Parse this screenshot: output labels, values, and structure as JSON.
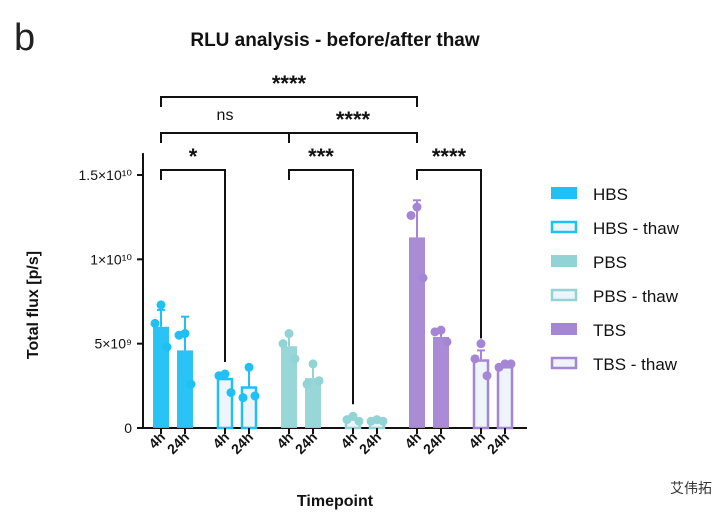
{
  "panel_label": "b",
  "watermark": "艾伟拓",
  "chart_data": {
    "type": "bar",
    "title": "RLU analysis - before/after thaw",
    "xlabel": "Timepoint",
    "ylabel": "Total flux [p/s]",
    "ylim": [
      0,
      16000000000.0
    ],
    "yticks": [
      {
        "value": 0,
        "label": "0"
      },
      {
        "value": 5000000000.0,
        "label": "5×10⁹"
      },
      {
        "value": 10000000000.0,
        "label": "1×10¹⁰"
      },
      {
        "value": 15000000000.0,
        "label": "1.5×10¹⁰"
      }
    ],
    "categories": [
      "4h",
      "24h"
    ],
    "legend_position": "right",
    "series": [
      {
        "name": "HBS",
        "color": "#1ec0f5",
        "thaw": false,
        "values": [
          6000000000.0,
          4600000000.0
        ],
        "errors_upper": [
          7000000000.0,
          6600000000.0
        ],
        "points": [
          [
            7300000000.0,
            6200000000.0,
            4800000000.0
          ],
          [
            5600000000.0,
            5500000000.0,
            2600000000.0
          ]
        ]
      },
      {
        "name": "HBS - thaw",
        "color": "#1ec0f5",
        "thaw": true,
        "values": [
          2900000000.0,
          2400000000.0
        ],
        "errors_upper": [
          3200000000.0,
          3600000000.0
        ],
        "points": [
          [
            3200000000.0,
            3100000000.0,
            2100000000.0
          ],
          [
            3600000000.0,
            1800000000.0,
            1900000000.0
          ]
        ]
      },
      {
        "name": "PBS",
        "color": "#92d4d6",
        "thaw": false,
        "values": [
          4850000000.0,
          2960000000.0
        ],
        "errors_upper": [
          5500000000.0,
          3800000000.0
        ],
        "points": [
          [
            5600000000.0,
            5000000000.0,
            4100000000.0
          ],
          [
            3800000000.0,
            2600000000.0,
            2800000000.0
          ]
        ]
      },
      {
        "name": "PBS - thaw",
        "color": "#92d4d6",
        "thaw": true,
        "values": [
          500000000.0,
          400000000.0
        ],
        "errors_upper": [
          700000000.0,
          500000000.0
        ],
        "points": [
          [
            700000000.0,
            500000000.0,
            400000000.0
          ],
          [
            500000000.0,
            400000000.0,
            400000000.0
          ]
        ]
      },
      {
        "name": "TBS",
        "color": "#a586d4",
        "thaw": false,
        "values": [
          11300000000.0,
          5400000000.0
        ],
        "errors_upper": [
          13500000000.0,
          5800000000.0
        ],
        "points": [
          [
            13100000000.0,
            12600000000.0,
            8900000000.0
          ],
          [
            5800000000.0,
            5700000000.0,
            5100000000.0
          ]
        ]
      },
      {
        "name": "TBS - thaw",
        "color": "#a586d4",
        "thaw": true,
        "values": [
          4000000000.0,
          3600000000.0
        ],
        "errors_upper": [
          4600000000.0,
          3800000000.0
        ],
        "points": [
          [
            5000000000.0,
            4100000000.0,
            3100000000.0
          ],
          [
            3800000000.0,
            3600000000.0,
            3800000000.0
          ]
        ]
      }
    ],
    "comparisons": [
      {
        "from": [
          0,
          0
        ],
        "to": [
          4,
          0
        ],
        "label": "****",
        "level": 3
      },
      {
        "from": [
          0,
          0
        ],
        "to": [
          2,
          0
        ],
        "label": "ns",
        "level": 2
      },
      {
        "from": [
          2,
          0
        ],
        "to": [
          4,
          0
        ],
        "label": "****",
        "level": 2
      },
      {
        "from": [
          0,
          0
        ],
        "to": [
          1,
          0
        ],
        "label": "*",
        "level": 1
      },
      {
        "from": [
          2,
          0
        ],
        "to": [
          3,
          0
        ],
        "label": "***",
        "level": 1
      },
      {
        "from": [
          4,
          0
        ],
        "to": [
          5,
          0
        ],
        "label": "****",
        "level": 1
      }
    ]
  }
}
